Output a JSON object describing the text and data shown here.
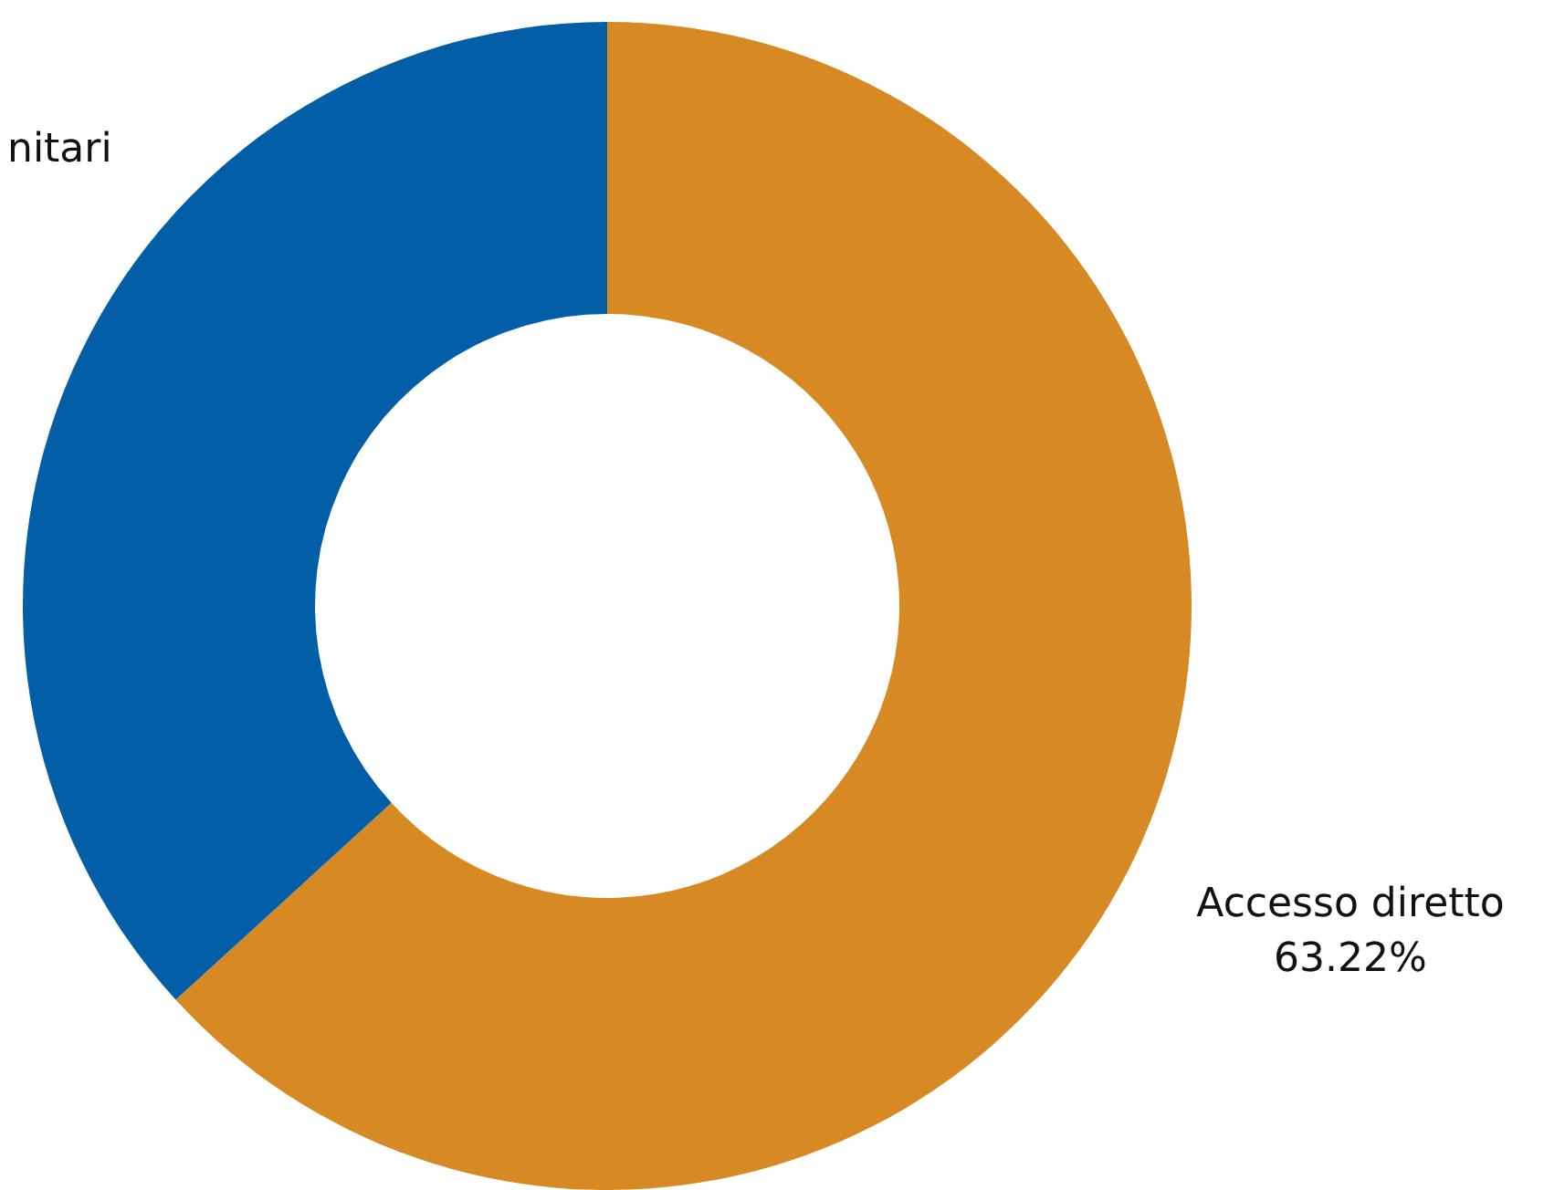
{
  "chart_data": {
    "type": "donut",
    "categories": [
      "Accesso diretto",
      "nitari"
    ],
    "values": [
      63.22,
      36.78
    ],
    "colors": [
      "#d78a23",
      "#035ea8"
    ],
    "value_labels": [
      "63.22%",
      null
    ],
    "legend": false
  }
}
